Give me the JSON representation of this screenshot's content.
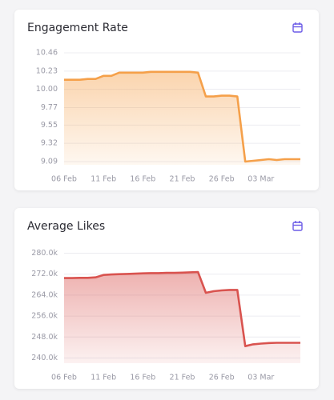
{
  "chart_data": [
    {
      "type": "area",
      "title": "Engagement Rate",
      "color": "#f5a04a",
      "categories": [
        "06 Feb",
        null,
        null,
        null,
        null,
        "11 Feb",
        null,
        null,
        null,
        null,
        "16 Feb",
        null,
        null,
        null,
        null,
        "21 Feb",
        null,
        null,
        null,
        null,
        "26 Feb",
        null,
        null,
        null,
        null,
        "03 Mar",
        null,
        null,
        null,
        null,
        null
      ],
      "values": [
        10.12,
        10.12,
        10.12,
        10.13,
        10.13,
        10.17,
        10.17,
        10.21,
        10.21,
        10.21,
        10.21,
        10.22,
        10.22,
        10.22,
        10.22,
        10.22,
        10.22,
        10.21,
        9.91,
        9.91,
        9.92,
        9.92,
        9.91,
        9.09,
        9.1,
        9.11,
        9.12,
        9.11,
        9.12,
        9.12,
        9.12
      ],
      "ylim": [
        9.05,
        10.5
      ],
      "yticks": [
        {
          "value": 9.09,
          "label": "9.09"
        },
        9.32,
        9.55,
        9.77,
        {
          "value": 10.0,
          "label": "10.00"
        },
        10.23,
        10.46
      ],
      "grid": true
    },
    {
      "type": "area",
      "title": "Average Likes",
      "color": "#d9534f",
      "categories": [
        "06 Feb",
        null,
        null,
        null,
        null,
        "11 Feb",
        null,
        null,
        null,
        null,
        "16 Feb",
        null,
        null,
        null,
        null,
        "21 Feb",
        null,
        null,
        null,
        null,
        "26 Feb",
        null,
        null,
        null,
        null,
        "03 Mar",
        null,
        null,
        null,
        null,
        null
      ],
      "values": [
        270500,
        270500,
        270600,
        270600,
        270800,
        271700,
        271900,
        272000,
        272100,
        272200,
        272300,
        272400,
        272400,
        272500,
        272500,
        272600,
        272700,
        272800,
        264900,
        265500,
        265800,
        266000,
        266000,
        244500,
        245200,
        245500,
        245700,
        245800,
        245800,
        245800,
        245800
      ],
      "ylim": [
        238000,
        282000
      ],
      "yticks": [
        {
          "value": 240000,
          "label": "240.0k"
        },
        {
          "value": 248000,
          "label": "248.0k"
        },
        {
          "value": 256000,
          "label": "256.0k"
        },
        {
          "value": 264000,
          "label": "264.0k"
        },
        {
          "value": 272000,
          "label": "272.0k"
        },
        {
          "value": 280000,
          "label": "280.0k"
        }
      ],
      "grid": true
    }
  ]
}
